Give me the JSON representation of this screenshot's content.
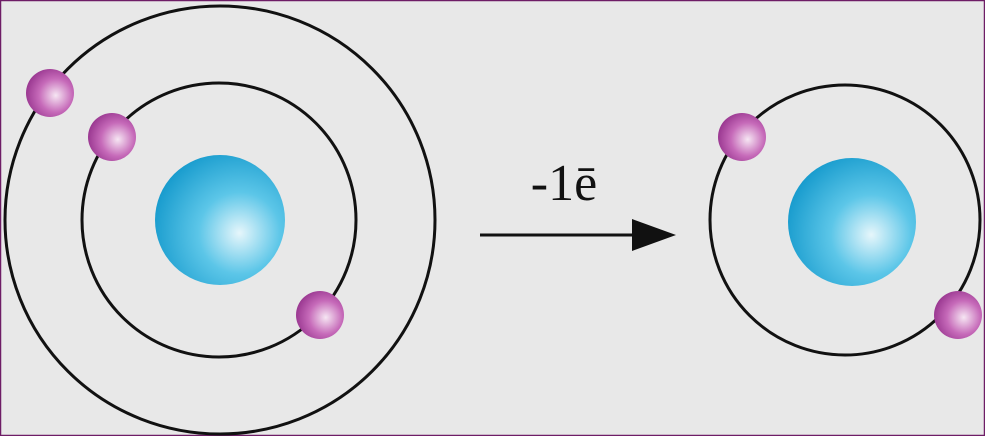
{
  "arrow": {
    "label": "-1ē"
  }
}
